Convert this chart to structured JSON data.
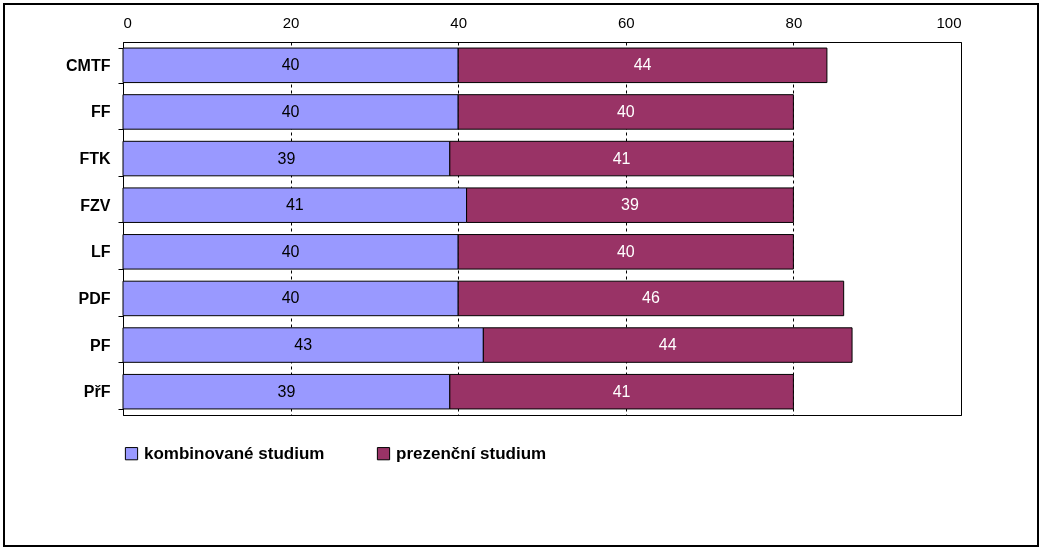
{
  "chart_data": {
    "type": "bar",
    "orientation": "horizontal",
    "stacked": true,
    "categories": [
      "CMTF",
      "FF",
      "FTK",
      "FZV",
      "LF",
      "PDF",
      "PF",
      "PřF"
    ],
    "series": [
      {
        "name": "kombinované studium",
        "color": "#9999ff",
        "values": [
          40,
          40,
          39,
          41,
          40,
          40,
          43,
          39
        ]
      },
      {
        "name": "prezenční studium",
        "color": "#993366",
        "values": [
          44,
          40,
          41,
          39,
          40,
          46,
          44,
          41
        ]
      }
    ],
    "xlim": [
      0,
      100
    ],
    "xticks": [
      0,
      20,
      40,
      60,
      80,
      100
    ],
    "grid": "x",
    "legend": "bottom",
    "data_labels": true
  }
}
